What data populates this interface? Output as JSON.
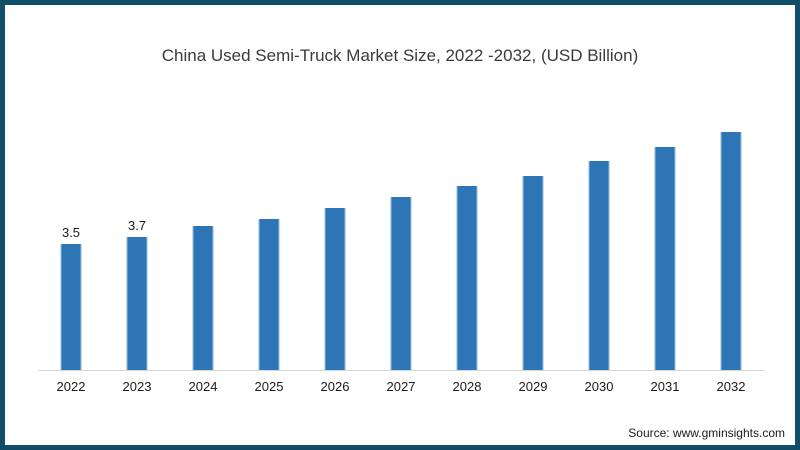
{
  "chart_data": {
    "type": "bar",
    "title": "China Used Semi-Truck Market Size, 2022 -2032, (USD Billion)",
    "categories": [
      "2022",
      "2023",
      "2024",
      "2025",
      "2026",
      "2027",
      "2028",
      "2029",
      "2030",
      "2031",
      "2032"
    ],
    "values": [
      3.5,
      3.7,
      4.0,
      4.2,
      4.5,
      4.8,
      5.1,
      5.4,
      5.8,
      6.2,
      6.6
    ],
    "data_labels": [
      "3.5",
      "3.7",
      "",
      "",
      "",
      "",
      "",
      "",
      "",
      "",
      ""
    ],
    "xlabel": "",
    "ylabel": "",
    "ylim": [
      0,
      7.5
    ],
    "grid": false,
    "legend": false,
    "bar_color": "#2e75b6",
    "bar_edge_color": "#92badf",
    "axis_line_color": "#d6d6d6",
    "title_color": "#3a3a3a",
    "label_color": "#1a1a1a",
    "frame_border_color": "#0f4e66",
    "background_color": "#ffffff"
  },
  "source": {
    "label": "Source: www.gminsights.com"
  }
}
